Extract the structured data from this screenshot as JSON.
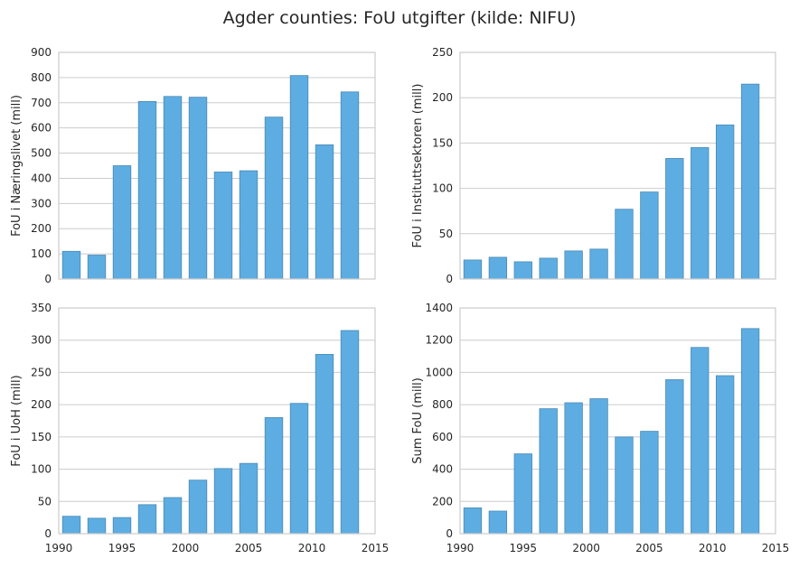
{
  "figure": {
    "title": "Agder counties: FoU utgifter (kilde: NIFU)"
  },
  "colors": {
    "bar_fill": "#5DADE2",
    "bar_edge": "#4A89B4",
    "grid": "#cccccc",
    "frame": "#cccccc",
    "text": "#262626"
  },
  "chart_data": [
    {
      "type": "bar",
      "position": "top-left",
      "ylabel": "FoU i Næringslivet (mill)",
      "x": [
        1991,
        1993,
        1995,
        1997,
        1999,
        2001,
        2003,
        2005,
        2007,
        2009,
        2011,
        2013
      ],
      "values": [
        110,
        95,
        450,
        705,
        725,
        722,
        425,
        430,
        643,
        808,
        533,
        743
      ],
      "xlim": [
        1990,
        2015
      ],
      "ylim": [
        0,
        900
      ],
      "yticks": [
        0,
        100,
        200,
        300,
        400,
        500,
        600,
        700,
        800,
        900
      ],
      "xticks": [],
      "grid": true
    },
    {
      "type": "bar",
      "position": "top-right",
      "ylabel": "FoU i Instituttsektoren (mill)",
      "x": [
        1991,
        1993,
        1995,
        1997,
        1999,
        2001,
        2003,
        2005,
        2007,
        2009,
        2011,
        2013
      ],
      "values": [
        21,
        24,
        19,
        23,
        31,
        33,
        77,
        96,
        133,
        145,
        170,
        215
      ],
      "xlim": [
        1990,
        2015
      ],
      "ylim": [
        0,
        250
      ],
      "yticks": [
        0,
        50,
        100,
        150,
        200,
        250
      ],
      "xticks": [],
      "grid": true
    },
    {
      "type": "bar",
      "position": "bottom-left",
      "ylabel": "FoU i UoH (mill)",
      "x": [
        1991,
        1993,
        1995,
        1997,
        1999,
        2001,
        2003,
        2005,
        2007,
        2009,
        2011,
        2013
      ],
      "values": [
        27,
        24,
        25,
        45,
        56,
        83,
        101,
        109,
        180,
        202,
        278,
        315
      ],
      "xlim": [
        1990,
        2015
      ],
      "ylim": [
        0,
        350
      ],
      "yticks": [
        0,
        50,
        100,
        150,
        200,
        250,
        300,
        350
      ],
      "xticks": [
        1990,
        1995,
        2000,
        2005,
        2010,
        2015
      ],
      "grid": true
    },
    {
      "type": "bar",
      "position": "bottom-right",
      "ylabel": "Sum FoU (mill)",
      "x": [
        1991,
        1993,
        1995,
        1997,
        1999,
        2001,
        2003,
        2005,
        2007,
        2009,
        2011,
        2013
      ],
      "values": [
        160,
        140,
        495,
        775,
        812,
        837,
        600,
        635,
        955,
        1155,
        980,
        1272
      ],
      "xlim": [
        1990,
        2015
      ],
      "ylim": [
        0,
        1400
      ],
      "yticks": [
        0,
        200,
        400,
        600,
        800,
        1000,
        1200,
        1400
      ],
      "xticks": [
        1990,
        1995,
        2000,
        2005,
        2010,
        2015
      ],
      "grid": true
    }
  ]
}
